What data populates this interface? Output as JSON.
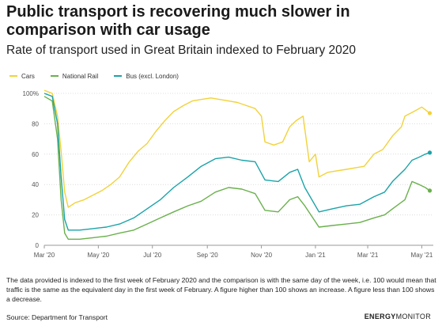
{
  "title": "Public transport is recovering much slower in comparison with car usage",
  "subtitle": "Rate of transport used in Great Britain indexed to February 2020",
  "note": "The data provided is indexed to the first week of February 2020 and the comparison is with the same day of the week, i.e. 100 would mean that traffic is the same as the equivalent day in the first week of February. A figure higher than 100 shows an increase. A figure less than 100 shows a decrease.",
  "source": "Source: Department for Transport",
  "brand": {
    "bold": "ENERGY",
    "light": "MONITOR"
  },
  "colors": {
    "cars": "#f2d23a",
    "rail": "#6ab04c",
    "bus": "#1aa3a8",
    "grid": "#dcdcdc"
  },
  "chart_data": {
    "type": "line",
    "ylabel": "",
    "xlabel": "",
    "ylim": [
      0,
      100
    ],
    "xlim": [
      "2020-03-01",
      "2021-05-14"
    ],
    "y_ticks": [
      {
        "value": 0,
        "label": "0"
      },
      {
        "value": 20,
        "label": "20"
      },
      {
        "value": 40,
        "label": "40"
      },
      {
        "value": 60,
        "label": "60"
      },
      {
        "value": 80,
        "label": "80"
      },
      {
        "value": 100,
        "label": "100%"
      }
    ],
    "x_ticks": [
      {
        "date": "2020-03-01",
        "label": "Mar '20"
      },
      {
        "date": "2020-05-01",
        "label": "May '20"
      },
      {
        "date": "2020-07-01",
        "label": "Jul '20"
      },
      {
        "date": "2020-09-01",
        "label": "Sep '20"
      },
      {
        "date": "2020-11-01",
        "label": "Nov '20"
      },
      {
        "date": "2021-01-01",
        "label": "Jan '21"
      },
      {
        "date": "2021-03-01",
        "label": "Mar '21"
      },
      {
        "date": "2021-05-01",
        "label": "May '21"
      }
    ],
    "grid": "horizontal",
    "legend": "top-left",
    "series": [
      {
        "name": "Cars",
        "color": "#f2d23a",
        "points": [
          [
            "2020-03-01",
            102
          ],
          [
            "2020-03-10",
            100
          ],
          [
            "2020-03-16",
            85
          ],
          [
            "2020-03-20",
            62
          ],
          [
            "2020-03-24",
            35
          ],
          [
            "2020-03-28",
            25
          ],
          [
            "2020-04-05",
            28
          ],
          [
            "2020-04-15",
            30
          ],
          [
            "2020-04-25",
            33
          ],
          [
            "2020-05-05",
            36
          ],
          [
            "2020-05-15",
            40
          ],
          [
            "2020-05-25",
            45
          ],
          [
            "2020-06-05",
            55
          ],
          [
            "2020-06-15",
            62
          ],
          [
            "2020-06-25",
            67
          ],
          [
            "2020-07-05",
            75
          ],
          [
            "2020-07-15",
            82
          ],
          [
            "2020-07-25",
            88
          ],
          [
            "2020-08-05",
            92
          ],
          [
            "2020-08-15",
            95
          ],
          [
            "2020-08-25",
            96
          ],
          [
            "2020-09-05",
            97
          ],
          [
            "2020-09-15",
            96
          ],
          [
            "2020-09-25",
            95
          ],
          [
            "2020-10-05",
            94
          ],
          [
            "2020-10-15",
            92
          ],
          [
            "2020-10-25",
            90
          ],
          [
            "2020-11-01",
            85
          ],
          [
            "2020-11-05",
            68
          ],
          [
            "2020-11-15",
            66
          ],
          [
            "2020-11-25",
            68
          ],
          [
            "2020-12-03",
            78
          ],
          [
            "2020-12-10",
            82
          ],
          [
            "2020-12-18",
            85
          ],
          [
            "2020-12-25",
            55
          ],
          [
            "2021-01-01",
            60
          ],
          [
            "2021-01-05",
            45
          ],
          [
            "2021-01-15",
            48
          ],
          [
            "2021-01-25",
            49
          ],
          [
            "2021-02-05",
            50
          ],
          [
            "2021-02-15",
            51
          ],
          [
            "2021-02-25",
            52
          ],
          [
            "2021-03-08",
            60
          ],
          [
            "2021-03-18",
            63
          ],
          [
            "2021-03-29",
            72
          ],
          [
            "2021-04-08",
            78
          ],
          [
            "2021-04-12",
            85
          ],
          [
            "2021-04-22",
            88
          ],
          [
            "2021-05-01",
            91
          ],
          [
            "2021-05-10",
            87
          ]
        ]
      },
      {
        "name": "National Rail",
        "color": "#6ab04c",
        "points": [
          [
            "2020-03-01",
            98
          ],
          [
            "2020-03-10",
            95
          ],
          [
            "2020-03-16",
            70
          ],
          [
            "2020-03-20",
            30
          ],
          [
            "2020-03-24",
            8
          ],
          [
            "2020-03-28",
            4
          ],
          [
            "2020-04-10",
            4
          ],
          [
            "2020-04-25",
            5
          ],
          [
            "2020-05-10",
            6
          ],
          [
            "2020-05-25",
            8
          ],
          [
            "2020-06-10",
            10
          ],
          [
            "2020-06-25",
            14
          ],
          [
            "2020-07-10",
            18
          ],
          [
            "2020-07-25",
            22
          ],
          [
            "2020-08-10",
            26
          ],
          [
            "2020-08-25",
            29
          ],
          [
            "2020-09-10",
            35
          ],
          [
            "2020-09-25",
            38
          ],
          [
            "2020-10-10",
            37
          ],
          [
            "2020-10-25",
            34
          ],
          [
            "2020-11-05",
            23
          ],
          [
            "2020-11-20",
            22
          ],
          [
            "2020-12-03",
            30
          ],
          [
            "2020-12-12",
            32
          ],
          [
            "2020-12-20",
            26
          ],
          [
            "2021-01-05",
            12
          ],
          [
            "2021-01-20",
            13
          ],
          [
            "2021-02-05",
            14
          ],
          [
            "2021-02-20",
            15
          ],
          [
            "2021-03-08",
            18
          ],
          [
            "2021-03-20",
            20
          ],
          [
            "2021-03-29",
            24
          ],
          [
            "2021-04-12",
            30
          ],
          [
            "2021-04-20",
            42
          ],
          [
            "2021-04-28",
            40
          ],
          [
            "2021-05-05",
            38
          ],
          [
            "2021-05-10",
            36
          ]
        ]
      },
      {
        "name": "Bus (excl. London)",
        "color": "#1aa3a8",
        "points": [
          [
            "2020-03-01",
            100
          ],
          [
            "2020-03-10",
            98
          ],
          [
            "2020-03-16",
            80
          ],
          [
            "2020-03-20",
            45
          ],
          [
            "2020-03-24",
            17
          ],
          [
            "2020-03-28",
            10
          ],
          [
            "2020-04-10",
            10
          ],
          [
            "2020-04-25",
            11
          ],
          [
            "2020-05-10",
            12
          ],
          [
            "2020-05-25",
            14
          ],
          [
            "2020-06-10",
            18
          ],
          [
            "2020-06-25",
            24
          ],
          [
            "2020-07-10",
            30
          ],
          [
            "2020-07-25",
            38
          ],
          [
            "2020-08-10",
            45
          ],
          [
            "2020-08-25",
            52
          ],
          [
            "2020-09-10",
            57
          ],
          [
            "2020-09-25",
            58
          ],
          [
            "2020-10-10",
            56
          ],
          [
            "2020-10-25",
            55
          ],
          [
            "2020-11-05",
            43
          ],
          [
            "2020-11-20",
            42
          ],
          [
            "2020-12-03",
            48
          ],
          [
            "2020-12-12",
            50
          ],
          [
            "2020-12-20",
            38
          ],
          [
            "2021-01-05",
            22
          ],
          [
            "2021-01-20",
            24
          ],
          [
            "2021-02-05",
            26
          ],
          [
            "2021-02-20",
            27
          ],
          [
            "2021-03-08",
            32
          ],
          [
            "2021-03-20",
            35
          ],
          [
            "2021-03-29",
            42
          ],
          [
            "2021-04-12",
            50
          ],
          [
            "2021-04-20",
            56
          ],
          [
            "2021-04-28",
            58
          ],
          [
            "2021-05-05",
            60
          ],
          [
            "2021-05-10",
            61
          ]
        ]
      }
    ]
  }
}
